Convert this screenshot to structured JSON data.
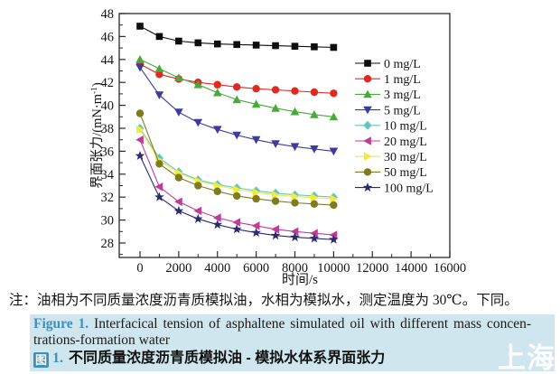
{
  "chart_data": {
    "type": "line",
    "title": "",
    "xlabel": "时间/s",
    "ylabel": "界面张力/(mN·m⁻¹)",
    "ylabel_parts": {
      "base": "界面张力/(mN·m",
      "sup": "-1",
      "close": ")"
    },
    "xlim": [
      -1000,
      16000
    ],
    "ylim": [
      26.8,
      48
    ],
    "x_tick_step": 2000,
    "x_minor_step": 1000,
    "y_tick_step": 2,
    "y_minor_step": 1,
    "x_ticks": [
      0,
      2000,
      4000,
      6000,
      8000,
      10000,
      12000,
      14000,
      16000
    ],
    "y_ticks": [
      28,
      30,
      32,
      34,
      36,
      38,
      40,
      42,
      44,
      46,
      48
    ],
    "grid": false,
    "legend_position": "inside-right",
    "x": [
      0,
      1000,
      2000,
      3000,
      4000,
      5000,
      6000,
      7000,
      8000,
      9000,
      10000
    ],
    "series": [
      {
        "name": "0 mg/L",
        "color": "#0d0d0d",
        "marker": "square",
        "values": [
          46.9,
          46.0,
          45.6,
          45.45,
          45.35,
          45.3,
          45.25,
          45.2,
          45.15,
          45.1,
          45.05
        ]
      },
      {
        "name": "1 mg/L",
        "color": "#e02a21",
        "marker": "circle",
        "values": [
          43.6,
          42.7,
          42.3,
          42.0,
          41.8,
          41.6,
          41.45,
          41.35,
          41.25,
          41.15,
          41.05
        ]
      },
      {
        "name": "3 mg/L",
        "color": "#4aa93c",
        "marker": "triangle-up",
        "values": [
          44.0,
          43.2,
          42.4,
          41.8,
          41.1,
          40.5,
          40.1,
          39.75,
          39.45,
          39.2,
          39.0
        ]
      },
      {
        "name": "5 mg/L",
        "color": "#3c3c9e",
        "marker": "triangle-down",
        "values": [
          43.3,
          40.9,
          39.4,
          38.5,
          37.9,
          37.4,
          37.0,
          36.65,
          36.4,
          36.2,
          36.0
        ]
      },
      {
        "name": "10 mg/L",
        "color": "#5fc7c5",
        "marker": "diamond",
        "values": [
          38.0,
          35.4,
          34.2,
          33.5,
          33.1,
          32.8,
          32.55,
          32.35,
          32.2,
          32.1,
          32.0
        ]
      },
      {
        "name": "20 mg/L",
        "color": "#c13c96",
        "marker": "triangle-left",
        "values": [
          37.0,
          32.9,
          31.6,
          30.8,
          30.2,
          29.8,
          29.5,
          29.2,
          29.0,
          28.85,
          28.7
        ]
      },
      {
        "name": "30 mg/L",
        "color": "#f2ea3d",
        "marker": "triangle-right",
        "values": [
          37.9,
          35.2,
          34.1,
          33.4,
          33.0,
          32.65,
          32.4,
          32.2,
          32.05,
          31.95,
          31.85
        ]
      },
      {
        "name": "50 mg/L",
        "color": "#7e7c1f",
        "marker": "circle",
        "values": [
          39.3,
          34.9,
          33.7,
          33.0,
          32.5,
          32.1,
          31.85,
          31.65,
          31.5,
          31.4,
          31.3
        ]
      },
      {
        "name": "100 mg/L",
        "color": "#2b2b6d",
        "marker": "star",
        "values": [
          35.6,
          32.0,
          30.8,
          30.1,
          29.6,
          29.2,
          28.9,
          28.65,
          28.5,
          28.4,
          28.3
        ]
      }
    ]
  },
  "note": "注：油相为不同质量浓度沥青质模拟油，水相为模拟水，测定温度为 30℃。下同。",
  "caption": {
    "figure_label_en": "Figure 1.",
    "en_line1_rest": " Interfacical tension of asphaltene simulated oil with different mass concen-",
    "en_line2": "trations-formation water",
    "zh_icon": "图",
    "zh_num": "1.",
    "zh_text": "不同质量浓度沥青质模拟油 - 模拟水体系界面张力",
    "highlight_color": "#cfe6ef",
    "label_color": "#3d8fbe"
  },
  "watermark": "上海谱"
}
